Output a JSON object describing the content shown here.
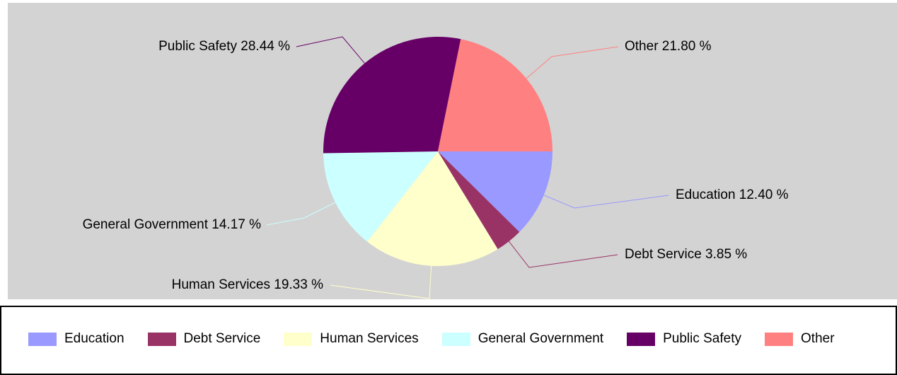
{
  "chart_data": {
    "type": "pie",
    "title": "",
    "slices": [
      {
        "name": "Education",
        "value": 12.4,
        "label": "Education 12.40 %",
        "color": "#9999ff"
      },
      {
        "name": "Debt Service",
        "value": 3.85,
        "label": "Debt Service 3.85 %",
        "color": "#993366"
      },
      {
        "name": "Human Services",
        "value": 19.33,
        "label": "Human Services 19.33 %",
        "color": "#ffffcc"
      },
      {
        "name": "General Government",
        "value": 14.17,
        "label": "General Government 14.17 %",
        "color": "#ccffff"
      },
      {
        "name": "Public Safety",
        "value": 28.44,
        "label": "Public Safety 28.44 %",
        "color": "#660066"
      },
      {
        "name": "Other",
        "value": 21.8,
        "label": "Other 21.80 %",
        "color": "#ff8080"
      }
    ],
    "legend_position": "bottom",
    "plot_background": "#d3d3d3"
  }
}
